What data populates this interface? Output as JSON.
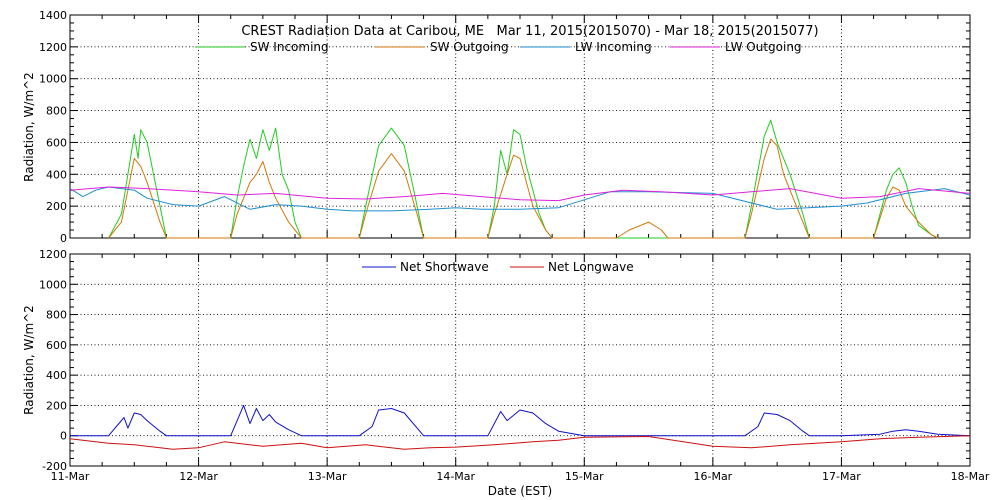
{
  "title": "CREST Radiation Data at Caribou, ME   Mar 11, 2015(2015070) - Mar 18, 2015(2015077)",
  "colors": {
    "sw_in": "#22cc22",
    "sw_out": "#d2780a",
    "lw_in": "#1f8fd0",
    "lw_out": "#dd22dd",
    "net_sw": "#1010cc",
    "net_lw": "#cc1010"
  },
  "chart_data": [
    {
      "type": "line",
      "panel": "top",
      "ylabel": "Radiation, W/m^2",
      "ylim": [
        0,
        1400
      ],
      "yticks": [
        "0",
        "200",
        "400",
        "600",
        "800",
        "1000",
        "1200",
        "1400"
      ],
      "xlim": [
        0,
        7
      ],
      "grid": true,
      "legend_position": "top",
      "series": [
        {
          "name": "SW Incoming",
          "color_key": "sw_in",
          "x": [
            0.3,
            0.4,
            0.45,
            0.5,
            0.53,
            0.55,
            0.6,
            0.7,
            0.75,
            1.25,
            1.3,
            1.35,
            1.4,
            1.45,
            1.5,
            1.55,
            1.6,
            1.65,
            1.7,
            1.75,
            1.8,
            2.25,
            2.3,
            2.4,
            2.5,
            2.6,
            2.7,
            2.75,
            3.25,
            3.3,
            3.35,
            3.4,
            3.45,
            3.5,
            3.55,
            3.6,
            3.65,
            3.7,
            3.75,
            5.25,
            5.3,
            5.4,
            5.45,
            5.5,
            5.55,
            5.6,
            5.7,
            5.75,
            6.25,
            6.3,
            6.35,
            6.4,
            6.45,
            6.5,
            6.55,
            6.6,
            6.7,
            6.75
          ],
          "y": [
            0,
            150,
            400,
            650,
            500,
            680,
            600,
            200,
            0,
            0,
            250,
            450,
            620,
            500,
            680,
            550,
            690,
            400,
            300,
            100,
            0,
            0,
            200,
            580,
            690,
            580,
            200,
            0,
            0,
            200,
            550,
            400,
            680,
            650,
            450,
            300,
            150,
            50,
            0,
            0,
            200,
            640,
            740,
            600,
            500,
            400,
            150,
            0,
            0,
            150,
            300,
            400,
            440,
            350,
            200,
            80,
            20,
            0
          ]
        },
        {
          "name": "SW Outgoing",
          "color_key": "sw_out",
          "x": [
            0.3,
            0.4,
            0.45,
            0.5,
            0.55,
            0.6,
            0.7,
            0.75,
            1.25,
            1.3,
            1.4,
            1.45,
            1.5,
            1.55,
            1.6,
            1.7,
            1.8,
            2.25,
            2.3,
            2.4,
            2.5,
            2.6,
            2.7,
            2.75,
            3.25,
            3.3,
            3.4,
            3.45,
            3.5,
            3.55,
            3.6,
            3.7,
            3.75,
            4.25,
            4.35,
            4.5,
            4.6,
            4.65,
            5.25,
            5.3,
            5.4,
            5.45,
            5.5,
            5.55,
            5.6,
            5.7,
            5.75,
            6.25,
            6.35,
            6.4,
            6.45,
            6.5,
            6.6,
            6.7,
            6.75
          ],
          "y": [
            0,
            100,
            300,
            500,
            450,
            350,
            100,
            0,
            0,
            150,
            350,
            400,
            480,
            350,
            250,
            100,
            0,
            0,
            150,
            420,
            530,
            420,
            150,
            0,
            0,
            150,
            400,
            520,
            500,
            350,
            200,
            50,
            0,
            0,
            50,
            100,
            50,
            0,
            0,
            150,
            500,
            620,
            580,
            400,
            300,
            100,
            0,
            0,
            250,
            320,
            300,
            200,
            100,
            20,
            0
          ]
        },
        {
          "name": "LW Incoming",
          "color_key": "lw_in",
          "x": [
            0,
            0.1,
            0.2,
            0.3,
            0.4,
            0.5,
            0.6,
            0.8,
            1.0,
            1.2,
            1.4,
            1.6,
            1.8,
            2.0,
            2.2,
            2.5,
            2.8,
            3.0,
            3.2,
            3.5,
            3.8,
            4.0,
            4.2,
            4.5,
            5.0,
            5.5,
            6.0,
            6.2,
            6.5,
            6.8,
            7.0
          ],
          "y": [
            310,
            260,
            300,
            320,
            310,
            300,
            250,
            210,
            200,
            260,
            180,
            210,
            200,
            180,
            170,
            170,
            180,
            190,
            180,
            180,
            190,
            240,
            290,
            290,
            280,
            180,
            200,
            220,
            280,
            310,
            270
          ]
        },
        {
          "name": "LW Outgoing",
          "color_key": "lw_out",
          "x": [
            0,
            0.3,
            0.6,
            1.0,
            1.3,
            1.6,
            2.0,
            2.3,
            2.6,
            2.9,
            3.2,
            3.5,
            3.8,
            4.0,
            4.3,
            4.6,
            5.0,
            5.3,
            5.6,
            6.0,
            6.3,
            6.6,
            7.0
          ],
          "y": [
            300,
            320,
            310,
            290,
            270,
            280,
            250,
            245,
            260,
            280,
            260,
            240,
            235,
            270,
            300,
            290,
            270,
            290,
            310,
            250,
            260,
            310,
            280
          ]
        }
      ]
    },
    {
      "type": "line",
      "panel": "bottom",
      "xlabel": "Date (EST)",
      "ylabel": "Radiation, W/m^2",
      "ylim": [
        -200,
        1200
      ],
      "yticks": [
        "-200",
        "0",
        "200",
        "400",
        "600",
        "800",
        "1000",
        "1200"
      ],
      "xlim": [
        0,
        7
      ],
      "categories": [
        "11-Mar",
        "12-Mar",
        "13-Mar",
        "14-Mar",
        "15-Mar",
        "16-Mar",
        "17-Mar",
        "18-Mar"
      ],
      "grid": true,
      "legend_position": "top",
      "series": [
        {
          "name": "Net Shortwave",
          "color_key": "net_sw",
          "x": [
            0,
            0.3,
            0.42,
            0.45,
            0.5,
            0.55,
            0.6,
            0.7,
            0.75,
            1.25,
            1.35,
            1.4,
            1.45,
            1.5,
            1.55,
            1.6,
            1.7,
            1.8,
            2.25,
            2.35,
            2.4,
            2.5,
            2.6,
            2.75,
            3.25,
            3.3,
            3.35,
            3.4,
            3.5,
            3.6,
            3.7,
            3.8,
            4.0,
            5.25,
            5.35,
            5.4,
            5.5,
            5.6,
            5.7,
            5.75,
            6.0,
            6.3,
            6.4,
            6.5,
            6.6,
            6.75,
            7.0
          ],
          "y": [
            0,
            0,
            120,
            50,
            150,
            140,
            100,
            30,
            0,
            0,
            200,
            80,
            180,
            100,
            140,
            90,
            40,
            0,
            0,
            60,
            170,
            180,
            150,
            0,
            0,
            80,
            160,
            100,
            170,
            150,
            80,
            30,
            0,
            0,
            60,
            150,
            140,
            100,
            30,
            0,
            0,
            10,
            30,
            40,
            30,
            10,
            0
          ]
        },
        {
          "name": "Net Longwave",
          "color_key": "net_lw",
          "x": [
            0,
            0.3,
            0.5,
            0.8,
            1.0,
            1.2,
            1.5,
            1.8,
            2.0,
            2.3,
            2.6,
            2.8,
            3.0,
            3.3,
            3.6,
            3.8,
            4.0,
            4.5,
            5.0,
            5.3,
            5.6,
            6.0,
            6.3,
            6.6,
            7.0
          ],
          "y": [
            -20,
            -50,
            -60,
            -90,
            -80,
            -40,
            -70,
            -50,
            -80,
            -60,
            -90,
            -80,
            -75,
            -60,
            -40,
            -30,
            -10,
            -5,
            -70,
            -80,
            -60,
            -40,
            -20,
            -10,
            0
          ]
        }
      ]
    }
  ]
}
